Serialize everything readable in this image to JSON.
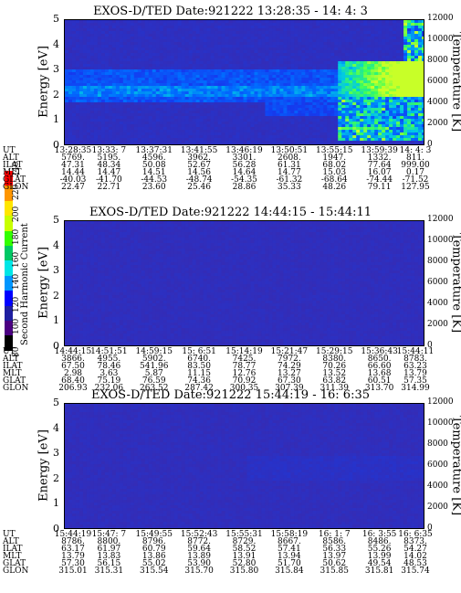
{
  "chart_data": [
    {
      "type": "heatmap",
      "title": "EXOS-D/TED   Date:921222  13:28:35 - 14: 4: 3",
      "ylabel": "Energy [eV]",
      "y2label": "Temperature [K]",
      "ylim": [
        0,
        5
      ],
      "y2lim": [
        0,
        12000
      ],
      "yticks": [
        "0",
        "1",
        "2",
        "3",
        "4",
        "5"
      ],
      "y2ticks": [
        "0",
        "2000",
        "4000",
        "6000",
        "8000",
        "10000",
        "12000"
      ],
      "ephemeris": {
        "UT": [
          "13:28:35",
          "13:33: 7",
          "13:37:31",
          "13:41:55",
          "13:46:19",
          "13:50:51",
          "13:55:15",
          "13:59:39",
          "14: 4: 3"
        ],
        "ALT": [
          "5769.",
          "5195.",
          "4596.",
          "3962.",
          "3301.",
          "2608.",
          "1947.",
          "1332.",
          "811."
        ],
        "ILAT": [
          "47.31",
          "48.34",
          "50.08",
          "52.67",
          "56.28",
          "61.31",
          "68.02",
          "77.64",
          "999.00"
        ],
        "MLT": [
          "14.44",
          "14.47",
          "14.51",
          "14.56",
          "14.64",
          "14.77",
          "15.03",
          "16.07",
          "0.17"
        ],
        "GLAT": [
          "-40.03",
          "-41.70",
          "-44.53",
          "-48.74",
          "-54.35",
          "-61.32",
          "-68.64",
          "-74.44",
          "-71.52"
        ],
        "GLON": [
          "22.47",
          "22.71",
          "23.60",
          "25.46",
          "28.86",
          "35.33",
          "48.26",
          "79.11",
          "127.95"
        ]
      },
      "feature": "intense band near 2-3 eV, brightening to green/cyan after 13:55"
    },
    {
      "type": "heatmap",
      "title": "EXOS-D/TED   Date:921222  14:44:15 - 15:44:11",
      "ylabel": "Energy [eV]",
      "y2label": "Temperature [K]",
      "ylim": [
        0,
        5
      ],
      "y2lim": [
        0,
        12000
      ],
      "yticks": [
        "0",
        "1",
        "2",
        "3",
        "4",
        "5"
      ],
      "y2ticks": [
        "0",
        "2000",
        "4000",
        "6000",
        "8000",
        "10000",
        "12000"
      ],
      "ephemeris": {
        "UT": [
          "14:44:15",
          "14:51:51",
          "14:59:15",
          "15: 6:51",
          "15:14:19",
          "15:21:47",
          "15:29:15",
          "15:36:43",
          "15:44:11"
        ],
        "ALT": [
          "3866.",
          "4955.",
          "5902.",
          "6740.",
          "7425.",
          "7972.",
          "8380.",
          "8650.",
          "8783."
        ],
        "ILAT": [
          "67.50",
          "78.46",
          "541.96",
          "83.50",
          "78.77",
          "74.29",
          "70.26",
          "66.60",
          "63.23"
        ],
        "MLT": [
          "2.98",
          "3.63",
          "5.87",
          "11.15",
          "12.76",
          "13.27",
          "13.52",
          "13.68",
          "13.79"
        ],
        "GLAT": [
          "68.40",
          "75.19",
          "76.59",
          "74.36",
          "70.92",
          "67.30",
          "63.82",
          "60.51",
          "57.35"
        ],
        "GLON": [
          "206.93",
          "232.06",
          "263.52",
          "287.42",
          "300.35",
          "307.39",
          "311.39",
          "313.70",
          "314.99"
        ]
      },
      "feature": "uniform low background"
    },
    {
      "type": "heatmap",
      "title": "EXOS-D/TED   Date:921222  15:44:19 - 16: 6:35",
      "ylabel": "Energy [eV]",
      "y2label": "Temperature [K]",
      "ylim": [
        0,
        5
      ],
      "y2lim": [
        0,
        12000
      ],
      "yticks": [
        "0",
        "1",
        "2",
        "3",
        "4",
        "5"
      ],
      "y2ticks": [
        "0",
        "2000",
        "4000",
        "6000",
        "8000",
        "10000",
        "12000"
      ],
      "ephemeris": {
        "UT": [
          "15:44:19",
          "15:47: 7",
          "15:49:55",
          "15:52:43",
          "15:55:31",
          "15:58:19",
          "16: 1: 7",
          "16: 3:55",
          "16: 6:35"
        ],
        "ALT": [
          "8786.",
          "8800.",
          "8796.",
          "8772.",
          "8729.",
          "8667.",
          "8586.",
          "8486.",
          "8373."
        ],
        "ILAT": [
          "63.17",
          "61.97",
          "60.79",
          "59.64",
          "58.52",
          "57.41",
          "56.33",
          "55.26",
          "54.27"
        ],
        "MLT": [
          "13.79",
          "13.83",
          "13.86",
          "13.89",
          "13.91",
          "13.94",
          "13.97",
          "13.99",
          "14.02"
        ],
        "GLAT": [
          "57.30",
          "56.15",
          "55.02",
          "53.90",
          "52.80",
          "51.70",
          "50.62",
          "49.54",
          "48.53"
        ],
        "GLON": [
          "315.01",
          "315.31",
          "315.54",
          "315.70",
          "315.80",
          "315.84",
          "315.85",
          "315.81",
          "315.74"
        ]
      },
      "feature": "faint enhancement near 2-3 eV after 15:58"
    }
  ],
  "colorbar": {
    "title": "Second Harmonic Current",
    "ticks": [
      "80",
      "100",
      "120",
      "140",
      "160",
      "180",
      "200",
      "220",
      "240"
    ],
    "colors": [
      "#000000",
      "#4b0082",
      "#1e1ea0",
      "#0000ff",
      "#0096ff",
      "#00e6e6",
      "#00c864",
      "#32ff00",
      "#c8ff00",
      "#ffe600",
      "#ff9600",
      "#ff0000"
    ]
  },
  "eph_labels": [
    "UT",
    "ALT",
    "ILAT",
    "MLT",
    "GLAT",
    "GLON"
  ]
}
